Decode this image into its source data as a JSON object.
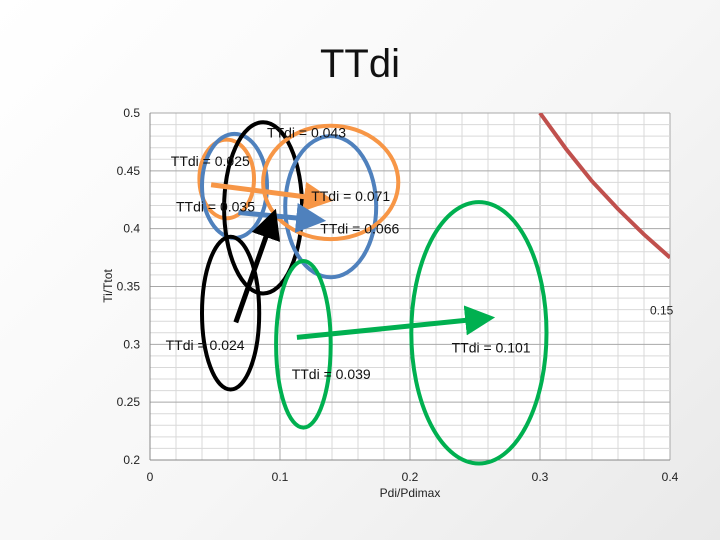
{
  "slide": {
    "title": "TTdi"
  },
  "chart_data": {
    "type": "scatter",
    "title": "TTdi",
    "xlabel": "Pdi/Pdimax",
    "ylabel": "Ti/Ttot",
    "xlim": [
      0,
      0.4
    ],
    "ylim": [
      0.2,
      0.5
    ],
    "xticks": [
      0,
      0.1,
      0.2,
      0.3,
      0.4
    ],
    "xtick_labels": [
      "0",
      "0.1",
      "0.2",
      "0.3",
      "0.4"
    ],
    "yticks": [
      0.2,
      0.25,
      0.3,
      0.35,
      0.4,
      0.45,
      0.5
    ],
    "ytick_labels": [
      "0.2",
      "0.25",
      "0.3",
      "0.35",
      "0.4",
      "0.45",
      "0.5"
    ],
    "grid": true,
    "series": [
      {
        "name": "0.15",
        "color": "#c0504d",
        "points": [
          [
            0.3,
            0.5
          ],
          [
            0.32,
            0.469
          ],
          [
            0.34,
            0.441
          ],
          [
            0.36,
            0.417
          ],
          [
            0.38,
            0.395
          ],
          [
            0.4,
            0.375
          ]
        ]
      }
    ],
    "ellipses": [
      {
        "color": "#f79646",
        "cx": 0.059,
        "cy": 0.443,
        "rx": 0.021,
        "ry": 0.034
      },
      {
        "color": "#4f81bd",
        "cx": 0.065,
        "cy": 0.437,
        "rx": 0.025,
        "ry": 0.045
      },
      {
        "color": "#000000",
        "cx": 0.087,
        "cy": 0.418,
        "rx": 0.03,
        "ry": 0.074
      },
      {
        "color": "#4f81bd",
        "cx": 0.139,
        "cy": 0.419,
        "rx": 0.035,
        "ry": 0.061
      },
      {
        "color": "#f79646",
        "cx": 0.139,
        "cy": 0.44,
        "rx": 0.052,
        "ry": 0.049
      },
      {
        "color": "#000000",
        "cx": 0.062,
        "cy": 0.327,
        "rx": 0.022,
        "ry": 0.066
      },
      {
        "color": "#00b050",
        "cx": 0.118,
        "cy": 0.3,
        "rx": 0.021,
        "ry": 0.072
      },
      {
        "color": "#00b050",
        "cx": 0.253,
        "cy": 0.31,
        "rx": 0.052,
        "ry": 0.113
      }
    ],
    "arrows": [
      {
        "color": "#f79646",
        "from": [
          0.047,
          0.438
        ],
        "to": [
          0.13,
          0.426
        ]
      },
      {
        "color": "#4f81bd",
        "from": [
          0.068,
          0.414
        ],
        "to": [
          0.124,
          0.408
        ]
      },
      {
        "color": "#000000",
        "from": [
          0.066,
          0.319
        ],
        "to": [
          0.093,
          0.405
        ]
      },
      {
        "color": "#00b050",
        "from": [
          0.113,
          0.306
        ],
        "to": [
          0.254,
          0.322
        ]
      }
    ],
    "annotations": [
      {
        "text": "TTdi = 0.043",
        "x": 0.09,
        "y": 0.479
      },
      {
        "text": "TTdi = 0.025",
        "x": 0.016,
        "y": 0.454
      },
      {
        "text": "TTdi = 0.071",
        "x": 0.124,
        "y": 0.424
      },
      {
        "text": "TTdi = 0.035",
        "x": 0.02,
        "y": 0.415
      },
      {
        "text": "TTdi = 0.066",
        "x": 0.131,
        "y": 0.396
      },
      {
        "text": "TTdi = 0.024",
        "x": 0.012,
        "y": 0.295
      },
      {
        "text": "TTdi = 0.101",
        "x": 0.232,
        "y": 0.293
      },
      {
        "text": "TTdi = 0.039",
        "x": 0.109,
        "y": 0.27
      }
    ]
  }
}
